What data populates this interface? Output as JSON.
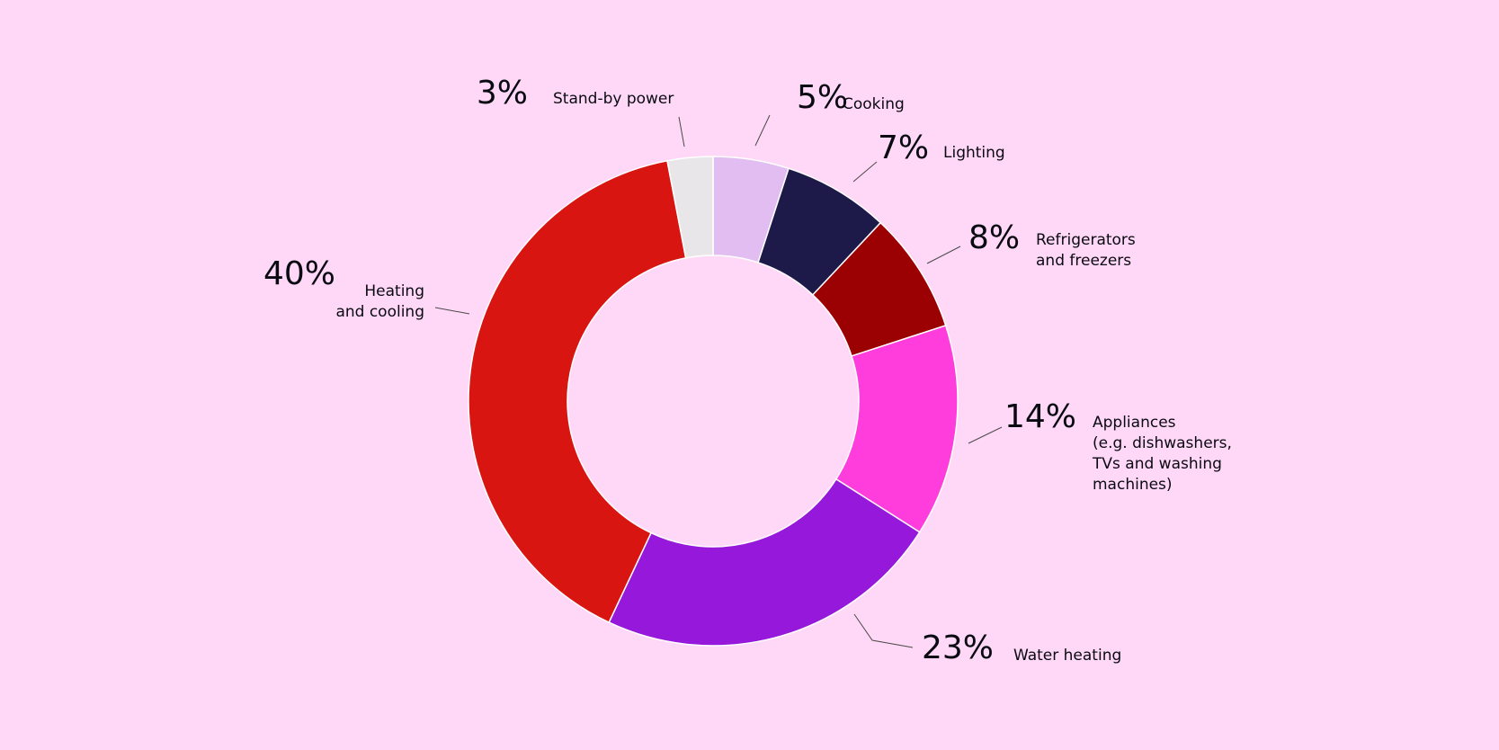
{
  "colors": {
    "background": "#ffd8f7"
  },
  "chart_data": {
    "type": "pie",
    "donut": true,
    "legend": "none",
    "slices": [
      {
        "label": "Cooking",
        "value": 5,
        "value_label": "5%",
        "color": "#e2bdf1"
      },
      {
        "label": "Lighting",
        "value": 7,
        "value_label": "7%",
        "color": "#1d1a4a"
      },
      {
        "label": "Refrigerators and freezers",
        "label_lines": [
          "Refrigerators",
          "and freezers"
        ],
        "value": 8,
        "value_label": "8%",
        "color": "#9b0003"
      },
      {
        "label": "Appliances (e.g. dishwashers, TVs and washing machines)",
        "label_lines": [
          "Appliances",
          "(e.g. dishwashers,",
          "TVs and washing",
          "machines)"
        ],
        "value": 14,
        "value_label": "14%",
        "color": "#ff3ddd"
      },
      {
        "label": "Water heating",
        "value": 23,
        "value_label": "23%",
        "color": "#9618da"
      },
      {
        "label": "Heating and cooling",
        "label_lines": [
          "Heating",
          "and cooling"
        ],
        "value": 40,
        "value_label": "40%",
        "color": "#d91511"
      },
      {
        "label": "Stand-by power",
        "value": 3,
        "value_label": "3%",
        "color": "#e9e6ea"
      }
    ]
  }
}
